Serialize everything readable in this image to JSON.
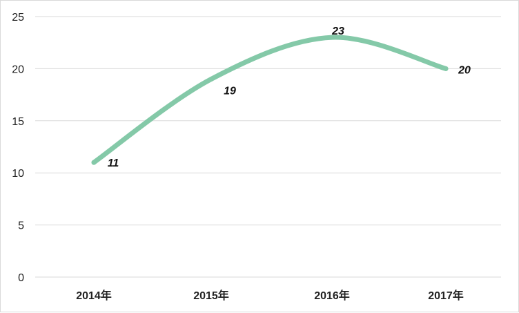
{
  "chart_data": {
    "type": "line",
    "title": "",
    "xlabel": "",
    "ylabel": "",
    "categories": [
      "2014年",
      "2015年",
      "2016年",
      "2017年"
    ],
    "series": [
      {
        "values": [
          11,
          19,
          23,
          20
        ],
        "color": "#84c9a8",
        "smooth": true
      }
    ],
    "ylim": [
      0,
      25
    ],
    "yticks": [
      "0",
      "5",
      "10",
      "15",
      "20",
      "25"
    ],
    "data_labels": [
      "11",
      "19",
      "23",
      "20"
    ],
    "grid": true,
    "legend": "none"
  }
}
